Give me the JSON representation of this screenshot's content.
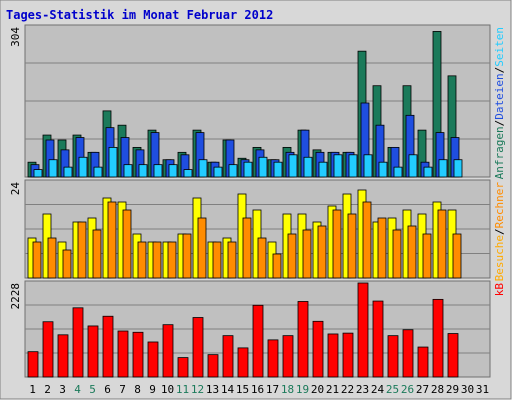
{
  "title": "Tages-Statistik im Monat Februar 2012",
  "colors": {
    "frame_bg": "#d8d8d8",
    "plot_bg": "#c0c0c0",
    "title": "#0000cc",
    "anfragen": "#1b7a5a",
    "dateien": "#1f4ee0",
    "seiten": "#22ccff",
    "besuche": "#ffff00",
    "rechner": "#ff8c00",
    "kb": "#ff0000",
    "weekend_label": "#1b7a5a",
    "weekday_label": "#000000"
  },
  "chart_data": [
    {
      "type": "bar",
      "panel": "top",
      "y_max_label": "304",
      "ylim": [
        0,
        304
      ],
      "grid": true,
      "series": [
        {
          "name": "Anfragen",
          "values": [
            30,
            85,
            75,
            85,
            50,
            134,
            105,
            60,
            95,
            35,
            50,
            95,
            30,
            75,
            38,
            60,
            35,
            60,
            95,
            55,
            50,
            50,
            255,
            185,
            60,
            185,
            95,
            295,
            205,
            null,
            null
          ]
        },
        {
          "name": "Dateien",
          "values": [
            25,
            75,
            55,
            80,
            50,
            100,
            80,
            55,
            90,
            35,
            45,
            90,
            30,
            75,
            35,
            55,
            35,
            50,
            95,
            50,
            50,
            50,
            150,
            105,
            60,
            125,
            30,
            90,
            80,
            null,
            null
          ]
        },
        {
          "name": "Seiten",
          "values": [
            15,
            35,
            20,
            40,
            20,
            60,
            25,
            25,
            25,
            25,
            15,
            35,
            20,
            25,
            30,
            40,
            30,
            45,
            40,
            30,
            45,
            45,
            45,
            30,
            20,
            45,
            20,
            35,
            35,
            null,
            null
          ]
        }
      ],
      "legend": [
        "Anfragen",
        "Dateien",
        "Seiten"
      ]
    },
    {
      "type": "bar",
      "panel": "middle",
      "y_max_label": "24",
      "ylim": [
        0,
        24
      ],
      "grid": true,
      "series": [
        {
          "name": "Besuche",
          "values": [
            10,
            16,
            9,
            14,
            15,
            20,
            19,
            11,
            9,
            9,
            11,
            20,
            9,
            10,
            21,
            17,
            9,
            16,
            16,
            14,
            18,
            21,
            22,
            14,
            15,
            17,
            16,
            19,
            17,
            null,
            null
          ]
        },
        {
          "name": "Rechner",
          "values": [
            9,
            10,
            7,
            14,
            12,
            19,
            17,
            9,
            9,
            9,
            11,
            15,
            9,
            9,
            15,
            10,
            6,
            11,
            12,
            13,
            17,
            16,
            19,
            15,
            12,
            13,
            11,
            17,
            11,
            null,
            null
          ]
        }
      ],
      "legend": [
        "Besuche",
        "Rechner"
      ]
    },
    {
      "type": "bar",
      "panel": "bottom",
      "y_max_label": "2228",
      "ylim": [
        0,
        2228
      ],
      "grid": true,
      "series": [
        {
          "name": "kB",
          "values": [
            600,
            1310,
            1000,
            1640,
            1210,
            1440,
            1090,
            1060,
            830,
            1240,
            460,
            1410,
            530,
            980,
            690,
            1700,
            880,
            980,
            1790,
            1320,
            1020,
            1040,
            2228,
            1800,
            980,
            1120,
            710,
            1840,
            1030,
            null,
            null
          ]
        }
      ],
      "legend": [
        "kB"
      ]
    }
  ],
  "legend_right": {
    "top": [
      {
        "text": "Anfragen",
        "color": "#1b7a5a"
      },
      {
        "text": "/",
        "color": "#000000"
      },
      {
        "text": "Dateien",
        "color": "#1f4ee0"
      },
      {
        "text": "/",
        "color": "#000000"
      },
      {
        "text": "Seiten",
        "color": "#22ccff"
      }
    ],
    "middle": [
      {
        "text": "Besuche",
        "color": "#ffaa00"
      },
      {
        "text": "/",
        "color": "#000000"
      },
      {
        "text": "Rechner",
        "color": "#ff8c00"
      }
    ],
    "bottom": [
      {
        "text": "kB",
        "color": "#ff0000"
      }
    ]
  },
  "x_labels": [
    {
      "text": "1",
      "weekend": false
    },
    {
      "text": "2",
      "weekend": false
    },
    {
      "text": "3",
      "weekend": false
    },
    {
      "text": "4",
      "weekend": true
    },
    {
      "text": "5",
      "weekend": true
    },
    {
      "text": "6",
      "weekend": false
    },
    {
      "text": "7",
      "weekend": false
    },
    {
      "text": "8",
      "weekend": false
    },
    {
      "text": "9",
      "weekend": false
    },
    {
      "text": "10",
      "weekend": false
    },
    {
      "text": "11",
      "weekend": true
    },
    {
      "text": "12",
      "weekend": true
    },
    {
      "text": "13",
      "weekend": false
    },
    {
      "text": "14",
      "weekend": false
    },
    {
      "text": "15",
      "weekend": false
    },
    {
      "text": "16",
      "weekend": false
    },
    {
      "text": "17",
      "weekend": false
    },
    {
      "text": "18",
      "weekend": true
    },
    {
      "text": "19",
      "weekend": true
    },
    {
      "text": "20",
      "weekend": false
    },
    {
      "text": "21",
      "weekend": false
    },
    {
      "text": "22",
      "weekend": false
    },
    {
      "text": "23",
      "weekend": false
    },
    {
      "text": "24",
      "weekend": false
    },
    {
      "text": "25",
      "weekend": true
    },
    {
      "text": "26",
      "weekend": true
    },
    {
      "text": "27",
      "weekend": false
    },
    {
      "text": "28",
      "weekend": false
    },
    {
      "text": "29",
      "weekend": false
    },
    {
      "text": "30",
      "weekend": false
    },
    {
      "text": "31",
      "weekend": false
    }
  ]
}
